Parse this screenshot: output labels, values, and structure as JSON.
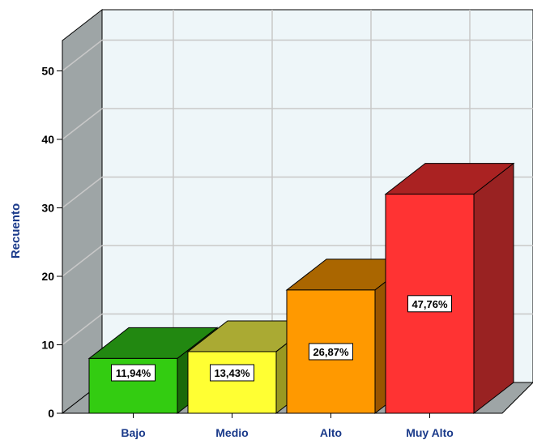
{
  "chart_data": {
    "type": "bar",
    "categories": [
      "Bajo",
      "Medio",
      "Alto",
      "Muy Alto"
    ],
    "values": [
      8,
      9,
      18,
      32
    ],
    "data_labels": [
      "11,94%",
      "13,43%",
      "26,87%",
      "47,76%"
    ],
    "ylabel": "Recuento",
    "xlabel": "",
    "ylim": [
      0,
      50
    ],
    "yticks": [
      0,
      10,
      20,
      30,
      40,
      50
    ],
    "grid": true,
    "style": "3d",
    "colors": {
      "front": [
        "#33cc11",
        "#ffff33",
        "#ff9900",
        "#ff3333"
      ],
      "top": [
        "#228811",
        "#aaaa33",
        "#aa6600",
        "#aa2222"
      ],
      "side": [
        "#1a6a0a",
        "#999922",
        "#995500",
        "#992222"
      ]
    }
  }
}
